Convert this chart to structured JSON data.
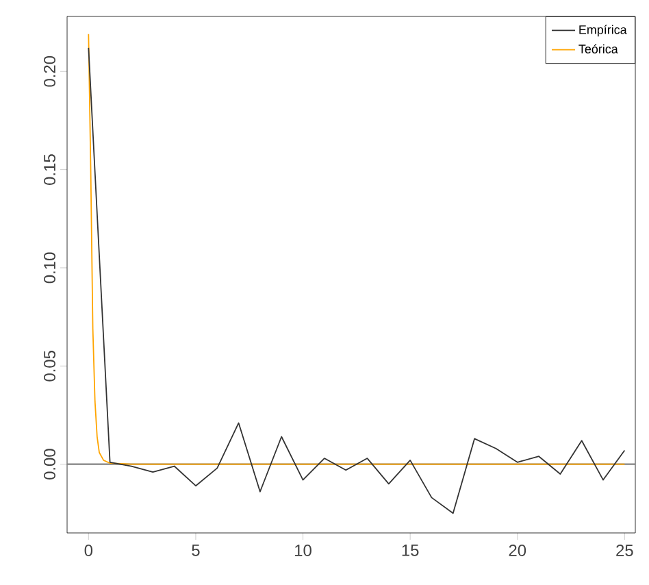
{
  "chart_data": {
    "type": "line",
    "x": [
      0,
      1,
      2,
      3,
      4,
      5,
      6,
      7,
      8,
      9,
      10,
      11,
      12,
      13,
      14,
      15,
      16,
      17,
      18,
      19,
      20,
      21,
      22,
      23,
      24,
      25
    ],
    "series": [
      {
        "name": "Empírica",
        "color": "#333333",
        "values": [
          0.212,
          0.001,
          -0.001,
          -0.004,
          -0.001,
          -0.011,
          -0.002,
          0.021,
          -0.014,
          0.014,
          -0.008,
          0.003,
          -0.003,
          0.003,
          -0.01,
          0.002,
          -0.017,
          -0.025,
          0.013,
          0.008,
          0.001,
          0.004,
          -0.005,
          0.012,
          -0.008,
          0.007
        ]
      },
      {
        "name": "Teórica",
        "color": "#ffa500",
        "x": [
          0,
          0.1,
          0.2,
          0.3,
          0.4,
          0.5,
          0.7,
          1,
          2,
          5,
          10,
          15,
          20,
          25
        ],
        "values": [
          0.219,
          0.152,
          0.069,
          0.032,
          0.014,
          0.006,
          0.002,
          0.0005,
          0,
          0,
          0,
          0,
          0,
          0
        ]
      }
    ],
    "xlim": [
      -1,
      25.5
    ],
    "ylim": [
      -0.035,
      0.228
    ],
    "xticks": [
      0,
      5,
      10,
      15,
      20,
      25
    ],
    "yticks": [
      {
        "value": 0,
        "label": "0.00"
      },
      {
        "value": 0.05,
        "label": "0.05"
      },
      {
        "value": 0.1,
        "label": "0.10"
      },
      {
        "value": 0.15,
        "label": "0.15"
      },
      {
        "value": 0.2,
        "label": "0.20"
      }
    ],
    "ref_lines": [
      {
        "axis": "y",
        "value": 0,
        "color": "#808080"
      }
    ],
    "legend": "top right",
    "grid": false
  }
}
